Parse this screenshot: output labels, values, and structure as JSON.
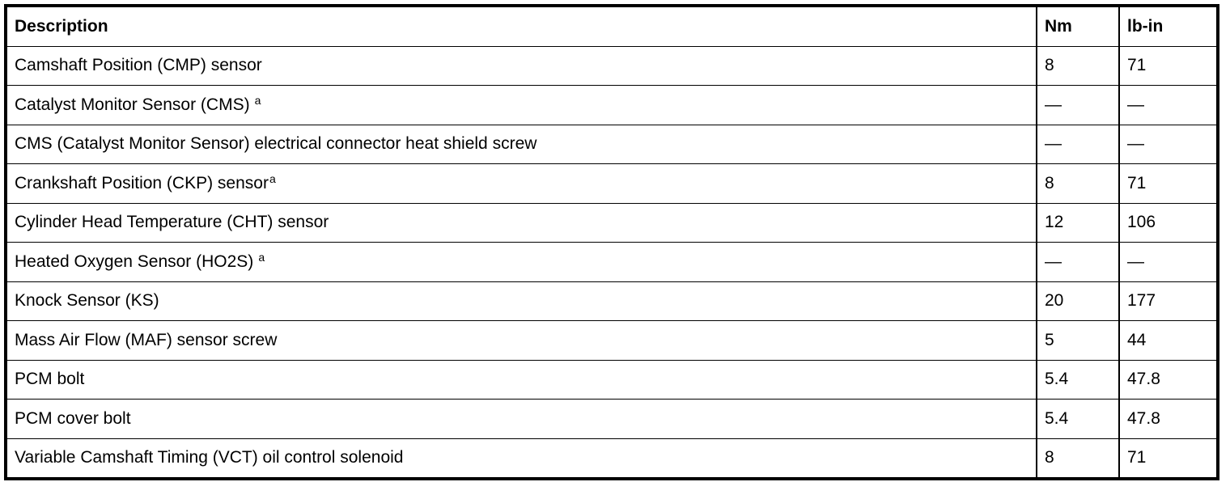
{
  "table": {
    "headers": [
      "Description",
      "Nm",
      "lb-in"
    ],
    "rows": [
      {
        "description": "Camshaft Position (CMP) sensor",
        "note": "",
        "nm": "8",
        "lbin": "71"
      },
      {
        "description": "Catalyst Monitor Sensor (CMS)",
        "note": "a",
        "nm": "—",
        "lbin": "—"
      },
      {
        "description": "CMS (Catalyst Monitor Sensor) electrical connector heat shield screw",
        "note": "",
        "nm": "—",
        "lbin": "—"
      },
      {
        "description": "Crankshaft Position (CKP) sensor",
        "note": "a",
        "nm": "8",
        "lbin": "71"
      },
      {
        "description": "Cylinder Head Temperature (CHT) sensor",
        "note": "",
        "nm": "12",
        "lbin": "106"
      },
      {
        "description": "Heated Oxygen Sensor (HO2S)",
        "note": "a",
        "nm": "—",
        "lbin": "—"
      },
      {
        "description": "Knock Sensor (KS)",
        "note": "",
        "nm": "20",
        "lbin": "177"
      },
      {
        "description": "Mass Air Flow (MAF) sensor screw",
        "note": "",
        "nm": "5",
        "lbin": "44"
      },
      {
        "description": "PCM bolt",
        "note": "",
        "nm": "5.4",
        "lbin": "47.8"
      },
      {
        "description": "PCM cover bolt",
        "note": "",
        "nm": "5.4",
        "lbin": "47.8"
      },
      {
        "description": "Variable Camshaft Timing (VCT) oil control solenoid",
        "note": "",
        "nm": "8",
        "lbin": "71"
      }
    ]
  }
}
